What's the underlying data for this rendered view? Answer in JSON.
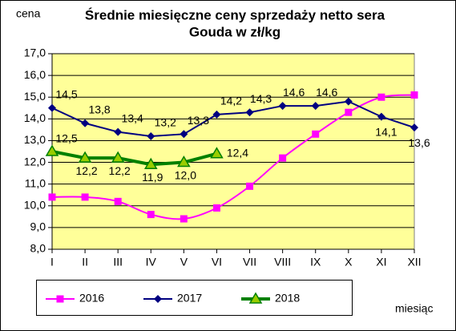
{
  "chart_data": {
    "type": "line",
    "title_lines": [
      "Średnie miesięczne ceny sprzedaży netto sera",
      "Gouda w zł/kg"
    ],
    "y_label": "cena",
    "x_label": "miesiąc",
    "categories": [
      "I",
      "II",
      "III",
      "IV",
      "V",
      "VI",
      "VII",
      "VIII",
      "IX",
      "X",
      "XI",
      "XII"
    ],
    "series": [
      {
        "name": "2016",
        "color": "#ff00ff",
        "marker": "square",
        "smooth": true,
        "values": [
          10.4,
          10.4,
          10.2,
          9.6,
          9.4,
          9.9,
          10.9,
          12.2,
          13.3,
          14.3,
          15.0,
          15.1
        ]
      },
      {
        "name": "2017",
        "color": "#000080",
        "marker": "diamond",
        "smooth": false,
        "values": [
          14.5,
          13.8,
          13.4,
          13.2,
          13.3,
          14.2,
          14.3,
          14.6,
          14.6,
          14.8,
          14.1,
          13.6
        ],
        "value_labels": [
          "14,5",
          "13,8",
          "13,4",
          "13,2",
          "13,3",
          "14,2",
          "14,3",
          "14,6",
          "14,6",
          null,
          "14,1",
          "13,6"
        ]
      },
      {
        "name": "2018",
        "color": "#008000",
        "marker": "triangle",
        "smooth": false,
        "values": [
          12.5,
          12.2,
          12.2,
          11.9,
          12.0,
          12.4,
          null,
          null,
          null,
          null,
          null,
          null
        ],
        "value_labels": [
          "12,5",
          "12,2",
          "12,2",
          "11,9",
          "12,0",
          "12,4",
          null,
          null,
          null,
          null,
          null,
          null
        ]
      }
    ],
    "ylim": [
      8,
      17
    ],
    "yticks": [
      {
        "value": 8,
        "label": "8,0"
      },
      {
        "value": 9,
        "label": "9,0"
      },
      {
        "value": 10,
        "label": "10,0"
      },
      {
        "value": 11,
        "label": "11,0"
      },
      {
        "value": 12,
        "label": "12,0"
      },
      {
        "value": 13,
        "label": "13,0"
      },
      {
        "value": 14,
        "label": "14,0"
      },
      {
        "value": 15,
        "label": "15,0"
      },
      {
        "value": 16,
        "label": "16,0"
      },
      {
        "value": 17,
        "label": "17,0"
      }
    ],
    "grid": true,
    "plot_background": "#ffff99",
    "legend": "bottom"
  }
}
